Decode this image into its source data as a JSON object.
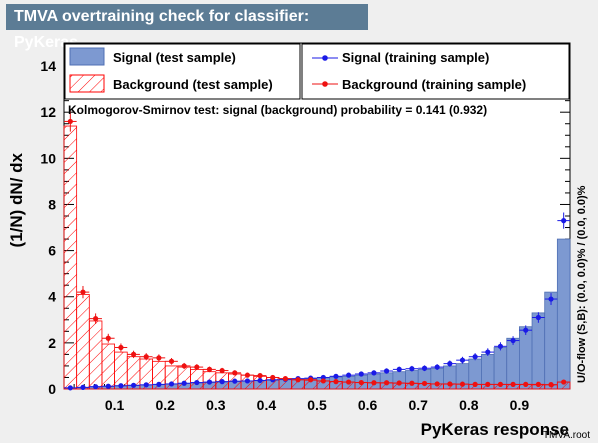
{
  "header": {
    "title": "TMVA overtraining check for classifier: PyKeras"
  },
  "footer": {
    "source": "TMVA.root"
  },
  "colors": {
    "signal_fill": "#7d99d1",
    "signal_line": "#4f6fb4",
    "signal_points": "#1a1ae6",
    "background_hatch": "#ff0000",
    "background_points": "#ee1111",
    "title_bg": "#5c7c95",
    "page_bg": "#efefef"
  },
  "chart_data": {
    "type": "histogram",
    "title": "TMVA overtraining check for classifier: PyKeras",
    "xlabel": "PyKeras response",
    "ylabel": "(1/N) dN/ dx",
    "right_label": "U/O-flow (S,B): (0.0, 0.0)% / (0.0, 0.0)%",
    "annotation": "Kolmogorov-Smirnov test: signal (background) probability = 0.141 (0.932)",
    "xlim": [
      0.0,
      1.0
    ],
    "ylim": [
      0,
      15
    ],
    "xticks": [
      "0.1",
      "0.2",
      "0.3",
      "0.4",
      "0.5",
      "0.6",
      "0.7",
      "0.8",
      "0.9"
    ],
    "yticks": [
      "0",
      "2",
      "4",
      "6",
      "8",
      "10",
      "12",
      "14"
    ],
    "legend_position": "top",
    "bins": 40,
    "series": [
      {
        "name": "Signal (test sample)",
        "style": "filled-histogram",
        "values": [
          0.05,
          0.07,
          0.1,
          0.12,
          0.14,
          0.16,
          0.18,
          0.2,
          0.22,
          0.24,
          0.26,
          0.28,
          0.3,
          0.32,
          0.34,
          0.36,
          0.38,
          0.4,
          0.42,
          0.45,
          0.48,
          0.52,
          0.55,
          0.6,
          0.65,
          0.7,
          0.75,
          0.8,
          0.85,
          0.9,
          1.0,
          1.1,
          1.3,
          1.5,
          1.8,
          2.2,
          2.7,
          3.3,
          4.2,
          6.5
        ]
      },
      {
        "name": "Background (test sample)",
        "style": "hatched-histogram",
        "values": [
          11.4,
          4.1,
          2.95,
          1.95,
          1.6,
          1.4,
          1.3,
          1.2,
          1.0,
          0.95,
          0.85,
          0.75,
          0.7,
          0.65,
          0.6,
          0.55,
          0.5,
          0.45,
          0.4,
          0.38,
          0.35,
          0.33,
          0.3,
          0.28,
          0.27,
          0.26,
          0.25,
          0.24,
          0.23,
          0.22,
          0.21,
          0.21,
          0.2,
          0.2,
          0.2,
          0.19,
          0.19,
          0.18,
          0.18,
          0.3
        ]
      },
      {
        "name": "Signal (training sample)",
        "style": "points",
        "values": [
          0.05,
          0.07,
          0.1,
          0.12,
          0.14,
          0.16,
          0.18,
          0.2,
          0.22,
          0.25,
          0.28,
          0.3,
          0.32,
          0.34,
          0.35,
          0.37,
          0.4,
          0.42,
          0.45,
          0.47,
          0.5,
          0.55,
          0.6,
          0.65,
          0.7,
          0.78,
          0.85,
          0.88,
          0.9,
          0.95,
          1.1,
          1.25,
          1.4,
          1.6,
          1.85,
          2.1,
          2.55,
          3.1,
          3.9,
          7.3
        ]
      },
      {
        "name": "Background (training sample)",
        "style": "points",
        "values": [
          11.6,
          4.2,
          3.05,
          2.2,
          1.8,
          1.5,
          1.4,
          1.35,
          1.2,
          1.0,
          0.95,
          0.85,
          0.8,
          0.7,
          0.6,
          0.58,
          0.5,
          0.45,
          0.4,
          0.4,
          0.35,
          0.32,
          0.3,
          0.28,
          0.27,
          0.27,
          0.26,
          0.25,
          0.24,
          0.22,
          0.22,
          0.21,
          0.2,
          0.2,
          0.2,
          0.2,
          0.2,
          0.2,
          0.19,
          0.3
        ]
      }
    ]
  }
}
